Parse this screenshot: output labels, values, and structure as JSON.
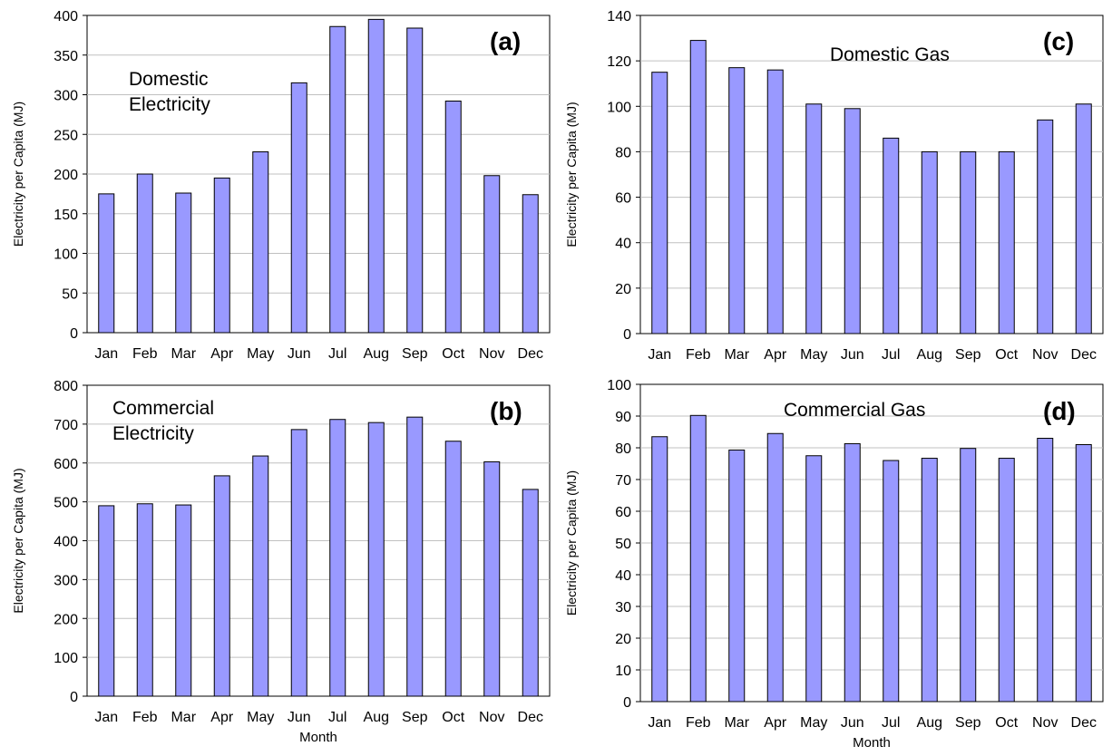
{
  "colors": {
    "bar_fill": "#9999ff",
    "bar_stroke": "#000000",
    "grid": "#c0c0c0"
  },
  "chart_data": [
    {
      "type": "bar",
      "panel_label": "(a)",
      "annotation": [
        "Domestic",
        "Electricity"
      ],
      "categories": [
        "Jan",
        "Feb",
        "Mar",
        "Apr",
        "May",
        "Jun",
        "Jul",
        "Aug",
        "Sep",
        "Oct",
        "Nov",
        "Dec"
      ],
      "values": [
        175,
        200,
        176,
        195,
        228,
        315,
        386,
        395,
        384,
        292,
        198,
        174
      ],
      "ylabel": "Electricity per Capita (MJ)",
      "xlabel": "",
      "ylim": [
        0,
        400
      ],
      "yticks": [
        0,
        50,
        100,
        150,
        200,
        250,
        300,
        350,
        400
      ],
      "grid": true
    },
    {
      "type": "bar",
      "panel_label": "(b)",
      "annotation": [
        "Commercial",
        "Electricity"
      ],
      "categories": [
        "Jan",
        "Feb",
        "Mar",
        "Apr",
        "May",
        "Jun",
        "Jul",
        "Aug",
        "Sep",
        "Oct",
        "Nov",
        "Dec"
      ],
      "values": [
        490,
        495,
        492,
        567,
        618,
        686,
        712,
        704,
        718,
        656,
        603,
        532
      ],
      "ylabel": "Electricity per Capita (MJ)",
      "xlabel": "Month",
      "ylim": [
        0,
        800
      ],
      "yticks": [
        0,
        100,
        200,
        300,
        400,
        500,
        600,
        700,
        800
      ],
      "grid": true
    },
    {
      "type": "bar",
      "panel_label": "(c)",
      "annotation": [
        "Domestic Gas"
      ],
      "categories": [
        "Jan",
        "Feb",
        "Mar",
        "Apr",
        "May",
        "Jun",
        "Jul",
        "Aug",
        "Sep",
        "Oct",
        "Nov",
        "Dec"
      ],
      "values": [
        115,
        129,
        117,
        116,
        101,
        99,
        86,
        80,
        80,
        80,
        94,
        101
      ],
      "ylabel": "Electricity per Capita (MJ)",
      "xlabel": "",
      "ylim": [
        0,
        140
      ],
      "yticks": [
        0,
        20,
        40,
        60,
        80,
        100,
        120,
        140
      ],
      "grid": true
    },
    {
      "type": "bar",
      "panel_label": "(d)",
      "annotation": [
        "Commercial Gas"
      ],
      "categories": [
        "Jan",
        "Feb",
        "Mar",
        "Apr",
        "May",
        "Jun",
        "Jul",
        "Aug",
        "Sep",
        "Oct",
        "Nov",
        "Dec"
      ],
      "values": [
        83.5,
        90.2,
        79.3,
        84.5,
        77.5,
        81.3,
        76.0,
        76.7,
        79.8,
        76.7,
        83.0,
        81.0
      ],
      "ylabel": "Electricity per Capita (MJ)",
      "xlabel": "Month",
      "ylim": [
        0,
        100
      ],
      "yticks": [
        0,
        10,
        20,
        30,
        40,
        50,
        60,
        70,
        80,
        90,
        100
      ],
      "grid": true
    }
  ]
}
